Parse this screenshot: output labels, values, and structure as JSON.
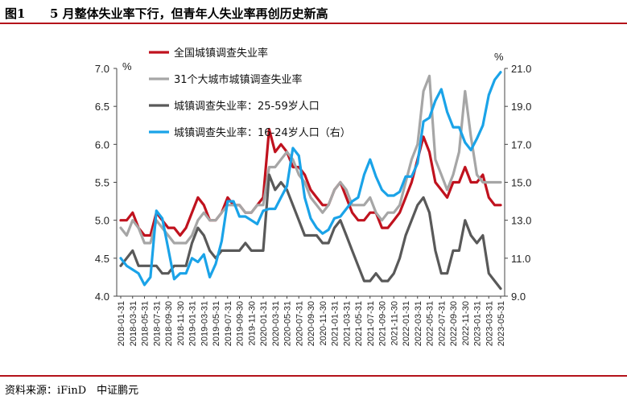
{
  "header": {
    "figure_no": "图1",
    "title": "5 月整体失业率下行，但青年人失业率再创历史新高"
  },
  "footer": {
    "source": "资料来源：iFinD　中证鹏元"
  },
  "chart_data": {
    "type": "line",
    "left_unit": "%",
    "right_unit": "%",
    "left_ylim": [
      4.0,
      7.0
    ],
    "left_ticks": [
      "4.0",
      "4.5",
      "5.0",
      "5.5",
      "6.0",
      "6.5",
      "7.0"
    ],
    "right_ylim": [
      9.0,
      21.0
    ],
    "right_ticks": [
      "9.0",
      "11.0",
      "13.0",
      "15.0",
      "17.0",
      "19.0",
      "21.0"
    ],
    "grid": false,
    "legend_position": "top-left",
    "x_labels": [
      "2018-01-31",
      "2018-03-31",
      "2018-05-31",
      "2018-07-31",
      "2018-09-30",
      "2018-11-30",
      "2019-01-31",
      "2019-03-31",
      "2019-05-31",
      "2019-07-31",
      "2019-09-30",
      "2019-11-30",
      "2020-01-31",
      "2020-03-31",
      "2020-05-31",
      "2020-07-31",
      "2020-09-30",
      "2020-11-30",
      "2021-01-31",
      "2021-03-31",
      "2021-05-31",
      "2021-07-31",
      "2021-09-30",
      "2021-11-30",
      "2022-01-31",
      "2022-03-31",
      "2022-05-31",
      "2022-07-31",
      "2022-09-30",
      "2022-11-30",
      "2023-01-31",
      "2023-03-31",
      "2023-05-31"
    ],
    "x_months": [
      "2018-01",
      "2018-02",
      "2018-03",
      "2018-04",
      "2018-05",
      "2018-06",
      "2018-07",
      "2018-08",
      "2018-09",
      "2018-10",
      "2018-11",
      "2018-12",
      "2019-01",
      "2019-02",
      "2019-03",
      "2019-04",
      "2019-05",
      "2019-06",
      "2019-07",
      "2019-08",
      "2019-09",
      "2019-10",
      "2019-11",
      "2019-12",
      "2020-01",
      "2020-02",
      "2020-03",
      "2020-04",
      "2020-05",
      "2020-06",
      "2020-07",
      "2020-08",
      "2020-09",
      "2020-10",
      "2020-11",
      "2020-12",
      "2021-01",
      "2021-02",
      "2021-03",
      "2021-04",
      "2021-05",
      "2021-06",
      "2021-07",
      "2021-08",
      "2021-09",
      "2021-10",
      "2021-11",
      "2021-12",
      "2022-01",
      "2022-02",
      "2022-03",
      "2022-04",
      "2022-05",
      "2022-06",
      "2022-07",
      "2022-08",
      "2022-09",
      "2022-10",
      "2022-11",
      "2022-12",
      "2023-01",
      "2023-02",
      "2023-03",
      "2023-04",
      "2023-05"
    ],
    "series": [
      {
        "name": "全国城镇调查失业率",
        "axis": "left",
        "color": "#c0121e",
        "values": [
          5.0,
          5.0,
          5.1,
          4.9,
          4.8,
          4.8,
          5.1,
          5.0,
          4.9,
          4.9,
          4.8,
          4.9,
          5.1,
          5.3,
          5.2,
          5.0,
          5.0,
          5.1,
          5.3,
          5.2,
          5.2,
          5.1,
          5.1,
          5.2,
          5.3,
          6.2,
          5.9,
          6.0,
          5.9,
          5.7,
          5.7,
          5.6,
          5.4,
          5.3,
          5.2,
          5.2,
          5.4,
          5.5,
          5.3,
          5.1,
          5.0,
          5.0,
          5.1,
          5.1,
          4.9,
          4.9,
          5.0,
          5.1,
          5.3,
          5.5,
          5.8,
          6.1,
          5.9,
          5.5,
          5.4,
          5.3,
          5.5,
          5.5,
          5.7,
          5.5,
          5.5,
          5.6,
          5.3,
          5.2,
          5.2
        ]
      },
      {
        "name": "31个大城市城镇调查失业率",
        "axis": "left",
        "color": "#a6a6a6",
        "values": [
          4.9,
          4.8,
          5.0,
          4.9,
          4.7,
          4.7,
          5.0,
          4.9,
          4.8,
          4.7,
          4.7,
          4.7,
          4.8,
          5.0,
          5.1,
          5.0,
          5.0,
          5.1,
          5.2,
          5.2,
          5.2,
          5.1,
          5.1,
          5.2,
          5.2,
          5.7,
          5.7,
          5.8,
          5.9,
          5.8,
          5.6,
          5.5,
          5.3,
          5.2,
          5.1,
          5.2,
          5.4,
          5.5,
          5.4,
          5.2,
          5.2,
          5.2,
          5.3,
          5.1,
          5.0,
          5.1,
          5.1,
          5.2,
          5.5,
          5.8,
          6.0,
          6.7,
          6.9,
          5.8,
          5.6,
          5.4,
          5.6,
          5.9,
          6.7,
          6.1,
          5.6,
          5.5,
          5.5,
          5.5,
          5.5
        ]
      },
      {
        "name": "城镇调查失业率：25-59岁人口",
        "axis": "left",
        "color": "#595959",
        "values": [
          4.4,
          4.5,
          4.6,
          4.4,
          4.4,
          4.4,
          4.4,
          4.3,
          4.3,
          4.4,
          4.4,
          4.4,
          4.7,
          4.9,
          4.8,
          4.6,
          4.5,
          4.6,
          4.6,
          4.6,
          4.6,
          4.7,
          4.6,
          4.6,
          4.6,
          5.6,
          5.4,
          5.5,
          5.4,
          5.2,
          5.0,
          4.8,
          4.8,
          4.8,
          4.7,
          4.7,
          4.9,
          5.0,
          4.8,
          4.6,
          4.4,
          4.2,
          4.2,
          4.3,
          4.2,
          4.2,
          4.3,
          4.5,
          4.8,
          5.0,
          5.2,
          5.3,
          5.1,
          4.6,
          4.3,
          4.3,
          4.6,
          4.6,
          5.0,
          4.8,
          4.7,
          4.8,
          4.3,
          4.2,
          4.1
        ]
      },
      {
        "name": "城镇调查失业率：16-24岁人口（右）",
        "axis": "right",
        "color": "#1aa3e8",
        "values": [
          11.0,
          10.6,
          10.4,
          10.2,
          9.6,
          10.0,
          13.5,
          13.1,
          11.5,
          9.9,
          10.2,
          10.2,
          11.0,
          10.8,
          11.2,
          10.0,
          10.7,
          11.9,
          14.0,
          14.0,
          13.2,
          13.2,
          13.0,
          12.8,
          13.5,
          13.6,
          13.6,
          14.2,
          14.8,
          16.8,
          16.4,
          14.2,
          13.1,
          12.6,
          12.3,
          12.5,
          13.1,
          13.2,
          13.6,
          14.0,
          14.2,
          15.4,
          16.2,
          15.3,
          14.6,
          14.3,
          14.3,
          14.5,
          15.3,
          15.3,
          16.0,
          18.2,
          18.4,
          19.3,
          19.9,
          18.7,
          17.9,
          17.9,
          17.1,
          16.7,
          17.3,
          18.0,
          19.6,
          20.4,
          20.8
        ]
      }
    ]
  }
}
